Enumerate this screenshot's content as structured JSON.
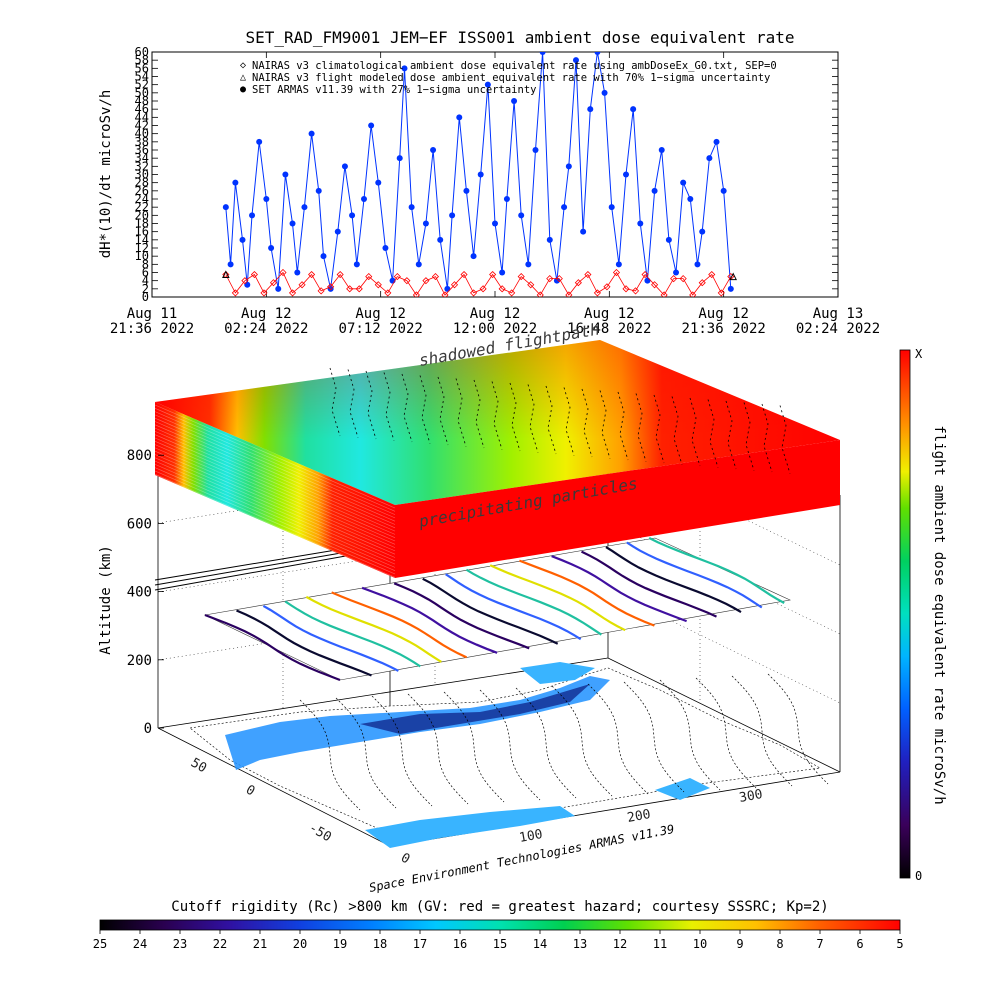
{
  "top_chart": {
    "title": "SET_RAD_FM9001  JEM−EF ISS001 ambient dose equivalent rate",
    "ylabel": "dH*(10)/dt microSv/h",
    "legend": [
      {
        "symbol": "◇",
        "color": "#ff0000",
        "text": "NAIRAS v3 climatological ambient dose equivalent rate using ambDoseEx_G0.txt, SEP=0"
      },
      {
        "symbol": "△",
        "color": "#000000",
        "text": "NAIRAS v3 flight modeled dose ambient equivalent rate with 70% 1−sigma uncertainty"
      },
      {
        "symbol": "●",
        "color": "#0033ff",
        "text": "SET ARMAS v11.39 with 27% 1−sigma uncertainty"
      }
    ],
    "x_ticks": [
      {
        "line1": "Aug 11",
        "line2": "21:36 2022"
      },
      {
        "line1": "Aug 12",
        "line2": "02:24 2022"
      },
      {
        "line1": "Aug 12",
        "line2": "07:12 2022"
      },
      {
        "line1": "Aug 12",
        "line2": "12:00 2022"
      },
      {
        "line1": "Aug 12",
        "line2": "16:48 2022"
      },
      {
        "line1": "Aug 12",
        "line2": "21:36 2022"
      },
      {
        "line1": "Aug 13",
        "line2": "02:24 2022"
      }
    ]
  },
  "scene": {
    "label_shadowed": "shadowed flightpath",
    "label_precip": "precipitating particles",
    "altitude_label": "Altitude (km)",
    "credit": "Space Environment Technologies ARMAS v11.39"
  },
  "right_colorbar": {
    "label": "flight ambient dose equivalent rate microSv/h",
    "top": "X",
    "bottom": "0"
  },
  "bottom_colorbar": {
    "title": "Cutoff rigidity (Rc) >800 km (GV: red = greatest hazard; courtesy SSSRC; Kp=2)"
  },
  "chart_data": [
    {
      "type": "line",
      "title": "SET_RAD_FM9001  JEM−EF ISS001 ambient dose equivalent rate",
      "ylabel": "dH*(10)/dt microSv/h",
      "ylim": [
        0,
        60
      ],
      "y_ticks": [
        0,
        2,
        4,
        6,
        8,
        10,
        12,
        14,
        16,
        18,
        20,
        22,
        24,
        26,
        28,
        30,
        32,
        34,
        36,
        38,
        40,
        42,
        44,
        46,
        48,
        50,
        52,
        54,
        56,
        58,
        60
      ],
      "xlim_hours_from_start": [
        0,
        28.8
      ],
      "x_tick_labels": [
        "Aug 11 21:36 2022",
        "Aug 12 02:24 2022",
        "Aug 12 07:12 2022",
        "Aug 12 12:00 2022",
        "Aug 12 16:48 2022",
        "Aug 12 21:36 2022",
        "Aug 13 02:24 2022"
      ],
      "series": [
        {
          "name": "SET ARMAS v11.39 with 27% 1−sigma uncertainty",
          "color": "#0033ff",
          "marker": "circle",
          "x": [
            3.1,
            3.3,
            3.5,
            3.8,
            4.0,
            4.2,
            4.5,
            4.8,
            5.0,
            5.3,
            5.6,
            5.9,
            6.1,
            6.4,
            6.7,
            7.0,
            7.2,
            7.5,
            7.8,
            8.1,
            8.4,
            8.6,
            8.9,
            9.2,
            9.5,
            9.8,
            10.1,
            10.4,
            10.6,
            10.9,
            11.2,
            11.5,
            11.8,
            12.1,
            12.4,
            12.6,
            12.9,
            13.2,
            13.5,
            13.8,
            14.1,
            14.4,
            14.7,
            14.9,
            15.2,
            15.5,
            15.8,
            16.1,
            16.4,
            16.7,
            17.0,
            17.3,
            17.5,
            17.8,
            18.1,
            18.4,
            18.7,
            19.0,
            19.3,
            19.6,
            19.9,
            20.2,
            20.5,
            20.8,
            21.1,
            21.4,
            21.7,
            22.0,
            22.3,
            22.6,
            22.9,
            23.1,
            23.4,
            23.7,
            24.0,
            24.3
          ],
          "y": [
            22,
            8,
            28,
            14,
            3,
            20,
            38,
            24,
            12,
            2,
            30,
            18,
            6,
            22,
            40,
            26,
            10,
            2,
            16,
            32,
            20,
            8,
            24,
            42,
            28,
            12,
            4,
            34,
            56,
            22,
            8,
            18,
            36,
            14,
            2,
            20,
            44,
            26,
            10,
            30,
            52,
            18,
            6,
            24,
            48,
            20,
            8,
            36,
            60,
            14,
            4,
            22,
            32,
            58,
            16,
            46,
            60,
            50,
            22,
            8,
            30,
            46,
            18,
            4,
            26,
            36,
            14,
            6,
            28,
            24,
            8,
            16,
            34,
            38,
            26,
            2
          ]
        },
        {
          "name": "NAIRAS v3 climatological ambient dose equivalent rate using ambDoseEx_G0.txt, SEP=0",
          "color": "#ff0000",
          "marker": "diamond",
          "pattern": "oscillates between about 0.5 and 6 with one cycle per ~1.55 h ISS orbit",
          "x": [
            3.1,
            3.5,
            3.9,
            4.3,
            4.7,
            5.1,
            5.5,
            5.9,
            6.3,
            6.7,
            7.1,
            7.5,
            7.9,
            8.3,
            8.7,
            9.1,
            9.5,
            9.9,
            10.3,
            10.7,
            11.1,
            11.5,
            11.9,
            12.3,
            12.7,
            13.1,
            13.5,
            13.9,
            14.3,
            14.7,
            15.1,
            15.5,
            15.9,
            16.3,
            16.7,
            17.1,
            17.5,
            17.9,
            18.3,
            18.7,
            19.1,
            19.5,
            19.9,
            20.3,
            20.7,
            21.1,
            21.5,
            21.9,
            22.3,
            22.7,
            23.1,
            23.5,
            23.9,
            24.3
          ],
          "y": [
            5.5,
            1,
            4,
            5.5,
            1,
            3.5,
            6,
            1,
            3,
            5.5,
            1.5,
            2.5,
            5.5,
            2,
            2,
            5,
            3,
            1,
            5,
            4,
            0.5,
            4,
            5,
            0.5,
            3,
            5.5,
            1,
            2,
            5.5,
            2,
            1,
            5,
            3,
            0.5,
            4.5,
            4.5,
            0.5,
            3.5,
            5.5,
            1,
            2.5,
            6,
            2,
            1.5,
            5.5,
            3,
            0.5,
            4.5,
            4.5,
            0.5,
            3.5,
            5.5,
            1,
            5
          ]
        },
        {
          "name": "NAIRAS v3 flight modeled dose ambient equivalent rate with 70% 1−sigma uncertainty",
          "color": "#000000",
          "marker": "triangle",
          "x": [
            3.1,
            24.4
          ],
          "y": [
            5.5,
            5
          ]
        }
      ]
    }
  ]
}
